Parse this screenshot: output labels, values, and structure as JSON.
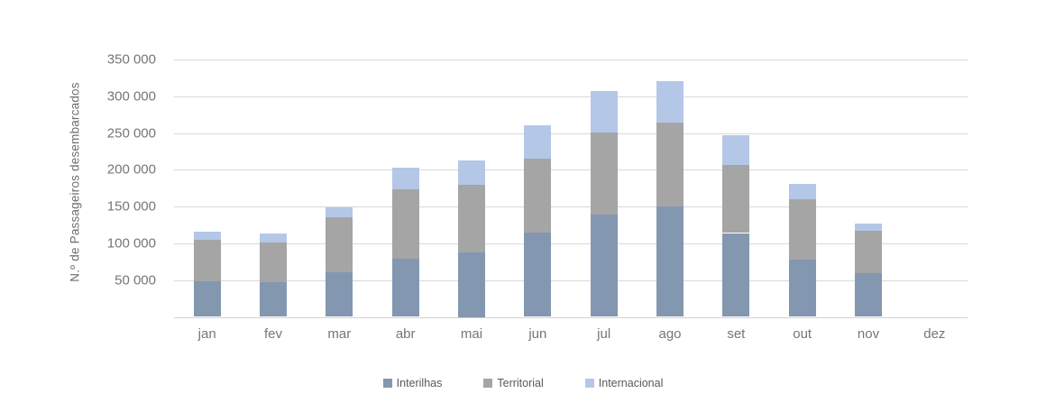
{
  "chart_data": {
    "type": "bar",
    "stacked": true,
    "title": "",
    "xlabel": "",
    "ylabel": "N.º de Passageiros desembarcados",
    "categories": [
      "jan",
      "fev",
      "mar",
      "abr",
      "mai",
      "jun",
      "jul",
      "ago",
      "set",
      "out",
      "nov",
      "dez"
    ],
    "series": [
      {
        "name": "Interilhas",
        "color": "#8497b0",
        "values": [
          48000,
          47000,
          61000,
          78500,
          87500,
          115000,
          139000,
          150500,
          114000,
          78000,
          59000,
          0
        ]
      },
      {
        "name": "Territorial",
        "color": "#a5a5a5",
        "values": [
          56500,
          54500,
          74000,
          94500,
          92500,
          100500,
          111500,
          114000,
          92000,
          82000,
          58500,
          0
        ]
      },
      {
        "name": "Internacional",
        "color": "#b4c7e7",
        "values": [
          11500,
          11500,
          14500,
          30000,
          33000,
          45000,
          57000,
          56000,
          40500,
          21000,
          9500,
          0
        ]
      }
    ],
    "totals": [
      116000,
      113000,
      149500,
      203000,
      213000,
      260500,
      307500,
      320500,
      246500,
      181000,
      127000,
      0
    ],
    "ylim": [
      0,
      350000
    ],
    "ytick_step": 50000,
    "ytick_labels": [
      "50 000",
      "100 000",
      "150 000",
      "200 000",
      "250 000",
      "300 000",
      "350 000"
    ],
    "grid": true,
    "legend_position": "bottom"
  },
  "colors": {
    "grid": "#d9d9d9",
    "axis_line": "#d2d2d2",
    "tick_text": "#767676",
    "axis_title_text": "#6e6e6e",
    "legend_text": "#595959",
    "background": "#ffffff"
  }
}
